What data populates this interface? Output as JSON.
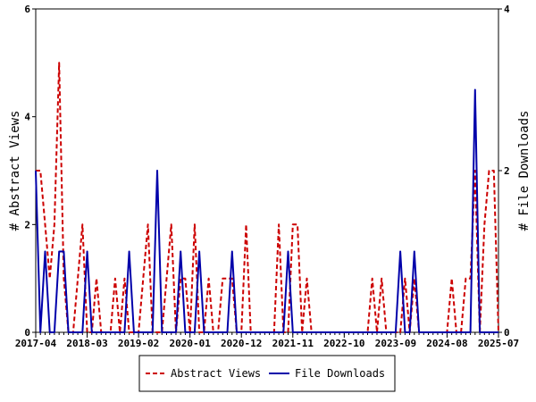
{
  "chart_data": {
    "type": "line",
    "ylabel": "# Abstract Views",
    "y2label": "# File Downloads",
    "ylim": [
      0,
      6
    ],
    "y2lim": [
      0,
      4
    ],
    "yticks": [
      0,
      2,
      4,
      6
    ],
    "y2ticks": [
      0,
      2,
      4
    ],
    "xticks": [
      "2017-04",
      "2018-03",
      "2019-02",
      "2020-01",
      "2020-12",
      "2021-11",
      "2022-10",
      "2023-09",
      "2024-08",
      "2025-07"
    ],
    "x_start": "2017-04",
    "x_end": "2025-07",
    "legend_position": "bottom",
    "series": [
      {
        "name": "Abstract Views",
        "axis": "left",
        "color": "#cc0000",
        "dash": true,
        "points": [
          [
            "2017-04",
            3
          ],
          [
            "2017-05",
            3
          ],
          [
            "2017-06",
            2
          ],
          [
            "2017-07",
            1
          ],
          [
            "2017-08",
            2
          ],
          [
            "2017-09",
            5
          ],
          [
            "2017-10",
            1
          ],
          [
            "2017-11",
            0
          ],
          [
            "2017-12",
            0
          ],
          [
            "2018-01",
            1
          ],
          [
            "2018-02",
            2
          ],
          [
            "2018-03",
            0
          ],
          [
            "2018-04",
            0
          ],
          [
            "2018-05",
            1
          ],
          [
            "2018-06",
            0
          ],
          [
            "2018-07",
            0
          ],
          [
            "2018-08",
            0
          ],
          [
            "2018-09",
            1
          ],
          [
            "2018-10",
            0
          ],
          [
            "2018-11",
            1
          ],
          [
            "2018-12",
            0
          ],
          [
            "2019-01",
            0
          ],
          [
            "2019-02",
            0
          ],
          [
            "2019-03",
            1
          ],
          [
            "2019-04",
            2
          ],
          [
            "2019-05",
            0
          ],
          [
            "2019-06",
            0
          ],
          [
            "2019-07",
            0
          ],
          [
            "2019-08",
            1
          ],
          [
            "2019-09",
            2
          ],
          [
            "2019-10",
            0
          ],
          [
            "2019-11",
            1
          ],
          [
            "2019-12",
            1
          ],
          [
            "2020-01",
            0
          ],
          [
            "2020-02",
            2
          ],
          [
            "2020-03",
            0
          ],
          [
            "2020-04",
            0
          ],
          [
            "2020-05",
            1
          ],
          [
            "2020-06",
            0
          ],
          [
            "2020-07",
            0
          ],
          [
            "2020-08",
            1
          ],
          [
            "2020-09",
            1
          ],
          [
            "2020-10",
            1
          ],
          [
            "2020-11",
            0
          ],
          [
            "2020-12",
            0
          ],
          [
            "2021-01",
            2
          ],
          [
            "2021-02",
            0
          ],
          [
            "2021-03",
            0
          ],
          [
            "2021-04",
            0
          ],
          [
            "2021-05",
            0
          ],
          [
            "2021-06",
            0
          ],
          [
            "2021-07",
            0
          ],
          [
            "2021-08",
            2
          ],
          [
            "2021-09",
            0
          ],
          [
            "2021-10",
            0
          ],
          [
            "2021-11",
            2
          ],
          [
            "2021-12",
            2
          ],
          [
            "2022-01",
            0
          ],
          [
            "2022-02",
            1
          ],
          [
            "2022-03",
            0
          ],
          [
            "2022-04",
            0
          ],
          [
            "2022-05",
            0
          ],
          [
            "2022-06",
            0
          ],
          [
            "2022-07",
            0
          ],
          [
            "2022-08",
            0
          ],
          [
            "2022-09",
            0
          ],
          [
            "2022-10",
            0
          ],
          [
            "2022-11",
            0
          ],
          [
            "2022-12",
            0
          ],
          [
            "2023-01",
            0
          ],
          [
            "2023-02",
            0
          ],
          [
            "2023-03",
            0
          ],
          [
            "2023-04",
            1
          ],
          [
            "2023-05",
            0
          ],
          [
            "2023-06",
            1
          ],
          [
            "2023-07",
            0
          ],
          [
            "2023-08",
            0
          ],
          [
            "2023-09",
            0
          ],
          [
            "2023-10",
            0
          ],
          [
            "2023-11",
            1
          ],
          [
            "2023-12",
            0
          ],
          [
            "2024-01",
            1
          ],
          [
            "2024-02",
            0
          ],
          [
            "2024-03",
            0
          ],
          [
            "2024-04",
            0
          ],
          [
            "2024-05",
            0
          ],
          [
            "2024-06",
            0
          ],
          [
            "2024-07",
            0
          ],
          [
            "2024-08",
            0
          ],
          [
            "2024-09",
            1
          ],
          [
            "2024-10",
            0
          ],
          [
            "2024-11",
            0
          ],
          [
            "2024-12",
            1
          ],
          [
            "2025-01",
            1
          ],
          [
            "2025-02",
            3
          ],
          [
            "2025-03",
            0
          ],
          [
            "2025-04",
            2
          ],
          [
            "2025-05",
            3
          ],
          [
            "2025-06",
            3
          ],
          [
            "2025-07",
            0
          ]
        ]
      },
      {
        "name": "File Downloads",
        "axis": "right",
        "color": "#0000aa",
        "dash": false,
        "points": [
          [
            "2017-04",
            2
          ],
          [
            "2017-05",
            0
          ],
          [
            "2017-06",
            1
          ],
          [
            "2017-07",
            0
          ],
          [
            "2017-08",
            0
          ],
          [
            "2017-09",
            1
          ],
          [
            "2017-10",
            1
          ],
          [
            "2017-11",
            0
          ],
          [
            "2017-12",
            0
          ],
          [
            "2018-01",
            0
          ],
          [
            "2018-02",
            0
          ],
          [
            "2018-03",
            1
          ],
          [
            "2018-04",
            0
          ],
          [
            "2018-05",
            0
          ],
          [
            "2018-06",
            0
          ],
          [
            "2018-07",
            0
          ],
          [
            "2018-08",
            0
          ],
          [
            "2018-09",
            0
          ],
          [
            "2018-10",
            0
          ],
          [
            "2018-11",
            0
          ],
          [
            "2018-12",
            1
          ],
          [
            "2019-01",
            0
          ],
          [
            "2019-02",
            0
          ],
          [
            "2019-03",
            0
          ],
          [
            "2019-04",
            0
          ],
          [
            "2019-05",
            0
          ],
          [
            "2019-06",
            2
          ],
          [
            "2019-07",
            0
          ],
          [
            "2019-08",
            0
          ],
          [
            "2019-09",
            0
          ],
          [
            "2019-10",
            0
          ],
          [
            "2019-11",
            1
          ],
          [
            "2019-12",
            0
          ],
          [
            "2020-01",
            0
          ],
          [
            "2020-02",
            0
          ],
          [
            "2020-03",
            1
          ],
          [
            "2020-04",
            0
          ],
          [
            "2020-05",
            0
          ],
          [
            "2020-06",
            0
          ],
          [
            "2020-07",
            0
          ],
          [
            "2020-08",
            0
          ],
          [
            "2020-09",
            0
          ],
          [
            "2020-10",
            1
          ],
          [
            "2020-11",
            0
          ],
          [
            "2020-12",
            0
          ],
          [
            "2021-01",
            0
          ],
          [
            "2021-02",
            0
          ],
          [
            "2021-03",
            0
          ],
          [
            "2021-04",
            0
          ],
          [
            "2021-05",
            0
          ],
          [
            "2021-06",
            0
          ],
          [
            "2021-07",
            0
          ],
          [
            "2021-08",
            0
          ],
          [
            "2021-09",
            0
          ],
          [
            "2021-10",
            1
          ],
          [
            "2021-11",
            0
          ],
          [
            "2021-12",
            0
          ],
          [
            "2022-01",
            0
          ],
          [
            "2022-02",
            0
          ],
          [
            "2022-03",
            0
          ],
          [
            "2022-04",
            0
          ],
          [
            "2022-05",
            0
          ],
          [
            "2022-06",
            0
          ],
          [
            "2022-07",
            0
          ],
          [
            "2022-08",
            0
          ],
          [
            "2022-09",
            0
          ],
          [
            "2022-10",
            0
          ],
          [
            "2022-11",
            0
          ],
          [
            "2022-12",
            0
          ],
          [
            "2023-01",
            0
          ],
          [
            "2023-02",
            0
          ],
          [
            "2023-03",
            0
          ],
          [
            "2023-04",
            0
          ],
          [
            "2023-05",
            0
          ],
          [
            "2023-06",
            0
          ],
          [
            "2023-07",
            0
          ],
          [
            "2023-08",
            0
          ],
          [
            "2023-09",
            0
          ],
          [
            "2023-10",
            1
          ],
          [
            "2023-11",
            0
          ],
          [
            "2023-12",
            0
          ],
          [
            "2024-01",
            1
          ],
          [
            "2024-02",
            0
          ],
          [
            "2024-03",
            0
          ],
          [
            "2024-04",
            0
          ],
          [
            "2024-05",
            0
          ],
          [
            "2024-06",
            0
          ],
          [
            "2024-07",
            0
          ],
          [
            "2024-08",
            0
          ],
          [
            "2024-09",
            0
          ],
          [
            "2024-10",
            0
          ],
          [
            "2024-11",
            0
          ],
          [
            "2024-12",
            0
          ],
          [
            "2025-01",
            0
          ],
          [
            "2025-02",
            3
          ],
          [
            "2025-03",
            0
          ],
          [
            "2025-04",
            0
          ],
          [
            "2025-05",
            0
          ],
          [
            "2025-06",
            0
          ],
          [
            "2025-07",
            0
          ]
        ]
      }
    ]
  }
}
